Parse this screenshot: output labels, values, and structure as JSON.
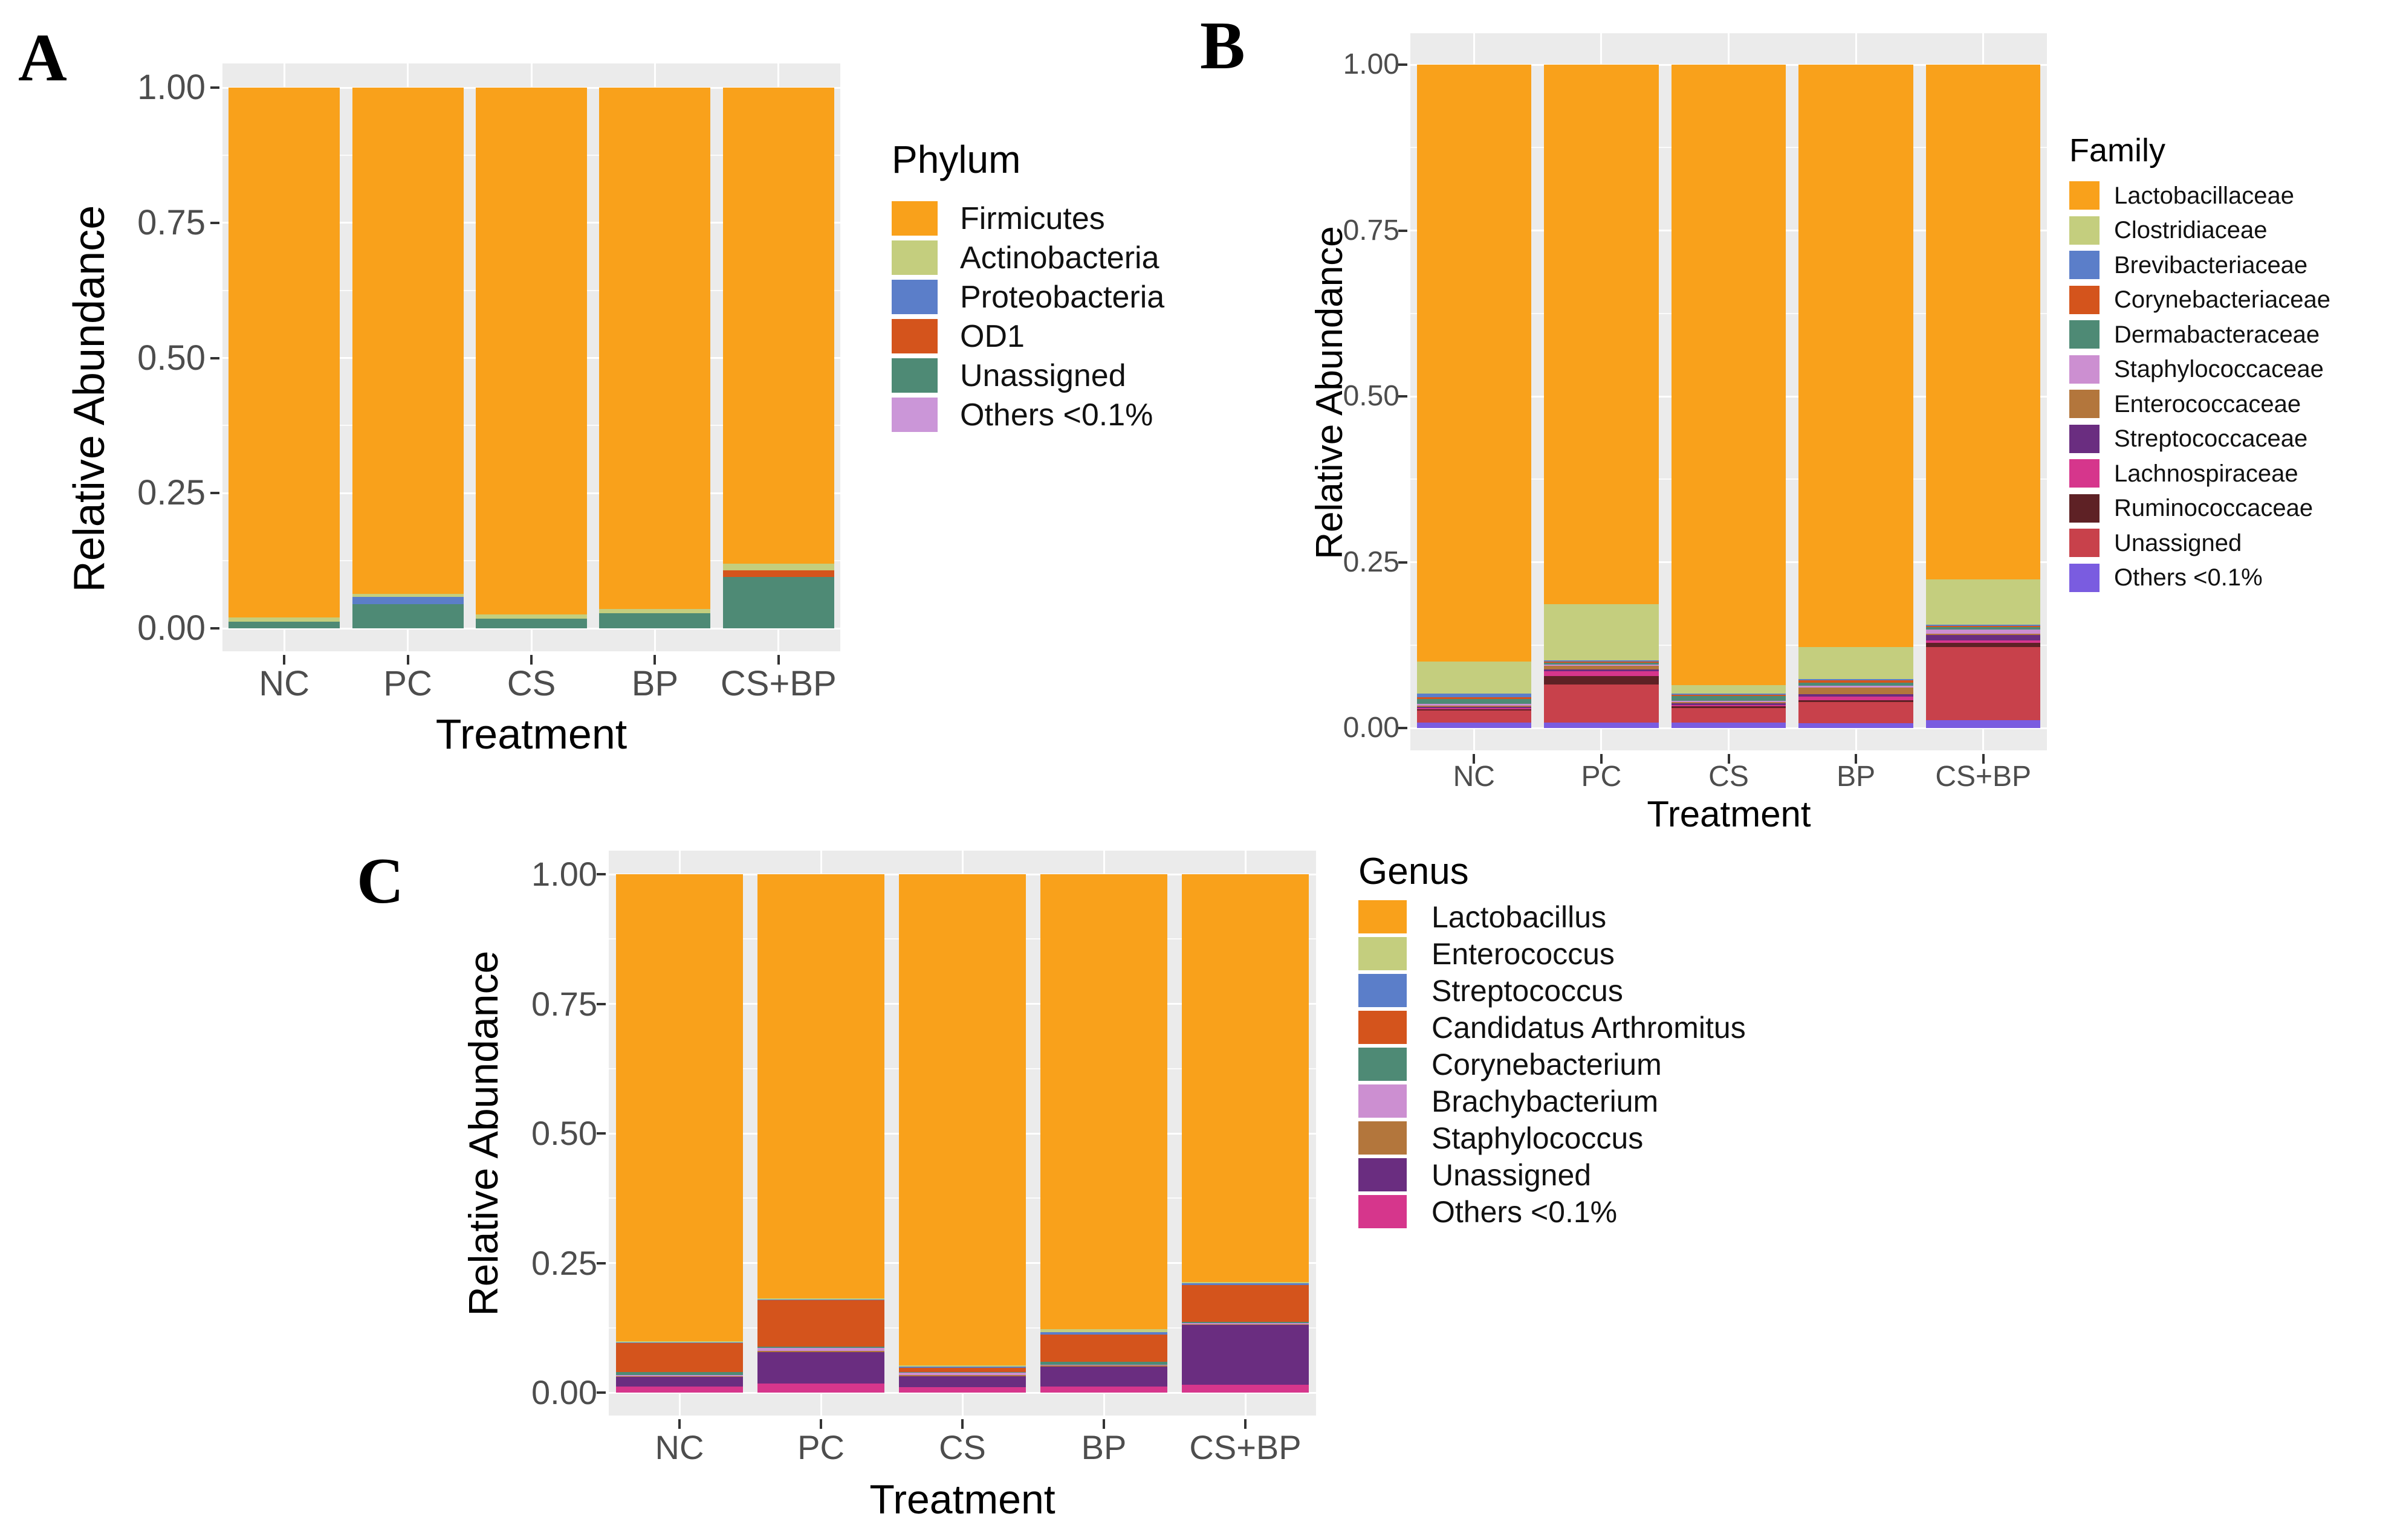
{
  "figure": {
    "background": "#FFFFFF",
    "panel_background": "#EBEBEB",
    "grid_color": "#FFFFFF",
    "tick_color": "#333333",
    "tick_label_color": "#4D4D4D",
    "axis_title_color": "#000000"
  },
  "chart_data": [
    {
      "id": "A",
      "type": "bar",
      "stacked": true,
      "panel_label": "A",
      "xlabel": "Treatment",
      "ylabel": "Relative Abundance",
      "categories": [
        "NC",
        "PC",
        "CS",
        "BP",
        "CS+BP"
      ],
      "ylim": [
        0,
        1
      ],
      "yticks": [
        {
          "value": 0.0,
          "label": "0.00"
        },
        {
          "value": 0.25,
          "label": "0.25"
        },
        {
          "value": 0.5,
          "label": "0.50"
        },
        {
          "value": 0.75,
          "label": "0.75"
        },
        {
          "value": 1.0,
          "label": "1.00"
        }
      ],
      "grid": true,
      "legend_title": "Phylum",
      "legend_position": "right",
      "series": [
        {
          "name": "Firmicutes",
          "color": "#F9A11B",
          "values": [
            0.98,
            0.936,
            0.974,
            0.964,
            0.881
          ]
        },
        {
          "name": "Actinobacteria",
          "color": "#C4CE7E",
          "values": [
            0.008,
            0.006,
            0.008,
            0.008,
            0.012
          ]
        },
        {
          "name": "Proteobacteria",
          "color": "#5B7EC9",
          "values": [
            0.0,
            0.013,
            0.0,
            0.0,
            0.0
          ]
        },
        {
          "name": "OD1",
          "color": "#D4541C",
          "values": [
            0.0,
            0.0,
            0.0,
            0.0,
            0.012
          ]
        },
        {
          "name": "Unassigned",
          "color": "#4E8A75",
          "values": [
            0.012,
            0.045,
            0.018,
            0.028,
            0.095
          ]
        },
        {
          "name": "Others <0.1%",
          "color": "#CB96D8",
          "values": [
            0.0,
            0.0,
            0.0,
            0.0,
            0.0
          ]
        }
      ]
    },
    {
      "id": "B",
      "type": "bar",
      "stacked": true,
      "panel_label": "B",
      "xlabel": "Treatment",
      "ylabel": "Relative Abundance",
      "categories": [
        "NC",
        "PC",
        "CS",
        "BP",
        "CS+BP"
      ],
      "ylim": [
        0,
        1
      ],
      "yticks": [
        {
          "value": 0.0,
          "label": "0.00"
        },
        {
          "value": 0.25,
          "label": "0.25"
        },
        {
          "value": 0.5,
          "label": "0.50"
        },
        {
          "value": 0.75,
          "label": "0.75"
        },
        {
          "value": 1.0,
          "label": "1.00"
        }
      ],
      "grid": true,
      "legend_title": "Family",
      "legend_position": "right",
      "series": [
        {
          "name": "Lactobacillaceae",
          "color": "#F9A11B",
          "values": [
            0.9,
            0.813,
            0.935,
            0.878,
            0.776
          ]
        },
        {
          "name": "Clostridiaceae",
          "color": "#C4CE7E",
          "values": [
            0.048,
            0.085,
            0.013,
            0.048,
            0.068
          ]
        },
        {
          "name": "Brevibacteriaceae",
          "color": "#5B7EC9",
          "values": [
            0.006,
            0.002,
            0.002,
            0.002,
            0.002
          ]
        },
        {
          "name": "Corynebacteriaceae",
          "color": "#D4541C",
          "values": [
            0.002,
            0.002,
            0.002,
            0.004,
            0.002
          ]
        },
        {
          "name": "Dermabacteraceae",
          "color": "#4E8A75",
          "values": [
            0.008,
            0.002,
            0.007,
            0.004,
            0.004
          ]
        },
        {
          "name": "Staphylococcaceae",
          "color": "#CC8FD1",
          "values": [
            0.002,
            0.002,
            0.002,
            0.003,
            0.006
          ]
        },
        {
          "name": "Enterococcaceae",
          "color": "#B3763C",
          "values": [
            0.002,
            0.006,
            0.002,
            0.01,
            0.002
          ]
        },
        {
          "name": "Streptococcaceae",
          "color": "#6A2D80",
          "values": [
            0.002,
            0.002,
            0.002,
            0.004,
            0.008
          ]
        },
        {
          "name": "Lachnospiraceae",
          "color": "#D6368C",
          "values": [
            0.002,
            0.008,
            0.002,
            0.005,
            0.004
          ]
        },
        {
          "name": "Ruminococcaceae",
          "color": "#5E2125",
          "values": [
            0.002,
            0.012,
            0.003,
            0.003,
            0.006
          ]
        },
        {
          "name": "Unassigned",
          "color": "#C8414B",
          "values": [
            0.018,
            0.058,
            0.022,
            0.032,
            0.11
          ]
        },
        {
          "name": "Others <0.1%",
          "color": "#7A5CE0",
          "values": [
            0.008,
            0.008,
            0.008,
            0.007,
            0.012
          ]
        }
      ]
    },
    {
      "id": "C",
      "type": "bar",
      "stacked": true,
      "panel_label": "C",
      "xlabel": "Treatment",
      "ylabel": "Relative Abundance",
      "categories": [
        "NC",
        "PC",
        "CS",
        "BP",
        "CS+BP"
      ],
      "ylim": [
        0,
        1
      ],
      "yticks": [
        {
          "value": 0.0,
          "label": "0.00"
        },
        {
          "value": 0.25,
          "label": "0.25"
        },
        {
          "value": 0.5,
          "label": "0.50"
        },
        {
          "value": 0.75,
          "label": "0.75"
        },
        {
          "value": 1.0,
          "label": "1.00"
        }
      ],
      "grid": true,
      "legend_title": "Genus",
      "legend_position": "right",
      "series": [
        {
          "name": "Lactobacillus",
          "color": "#F9A11B",
          "values": [
            0.901,
            0.818,
            0.947,
            0.878,
            0.787
          ]
        },
        {
          "name": "Enterococcus",
          "color": "#C4CE7E",
          "values": [
            0.002,
            0.002,
            0.003,
            0.005,
            0.002
          ]
        },
        {
          "name": "Streptococcus",
          "color": "#5B7EC9",
          "values": [
            0.002,
            0.002,
            0.002,
            0.005,
            0.003
          ]
        },
        {
          "name": "Candidatus Arthromitus",
          "color": "#D4541C",
          "values": [
            0.055,
            0.09,
            0.008,
            0.052,
            0.072
          ]
        },
        {
          "name": "Corynebacterium",
          "color": "#4E8A75",
          "values": [
            0.006,
            0.002,
            0.002,
            0.006,
            0.002
          ]
        },
        {
          "name": "Brachybacterium",
          "color": "#CC8FD1",
          "values": [
            0.002,
            0.006,
            0.004,
            0.002,
            0.002
          ]
        },
        {
          "name": "Staphylococcus",
          "color": "#B3763C",
          "values": [
            0.002,
            0.002,
            0.002,
            0.002,
            0.002
          ]
        },
        {
          "name": "Unassigned",
          "color": "#6A2D80",
          "values": [
            0.018,
            0.06,
            0.022,
            0.038,
            0.115
          ]
        },
        {
          "name": "Others <0.1%",
          "color": "#D6368C",
          "values": [
            0.012,
            0.018,
            0.01,
            0.012,
            0.015
          ]
        }
      ]
    }
  ]
}
